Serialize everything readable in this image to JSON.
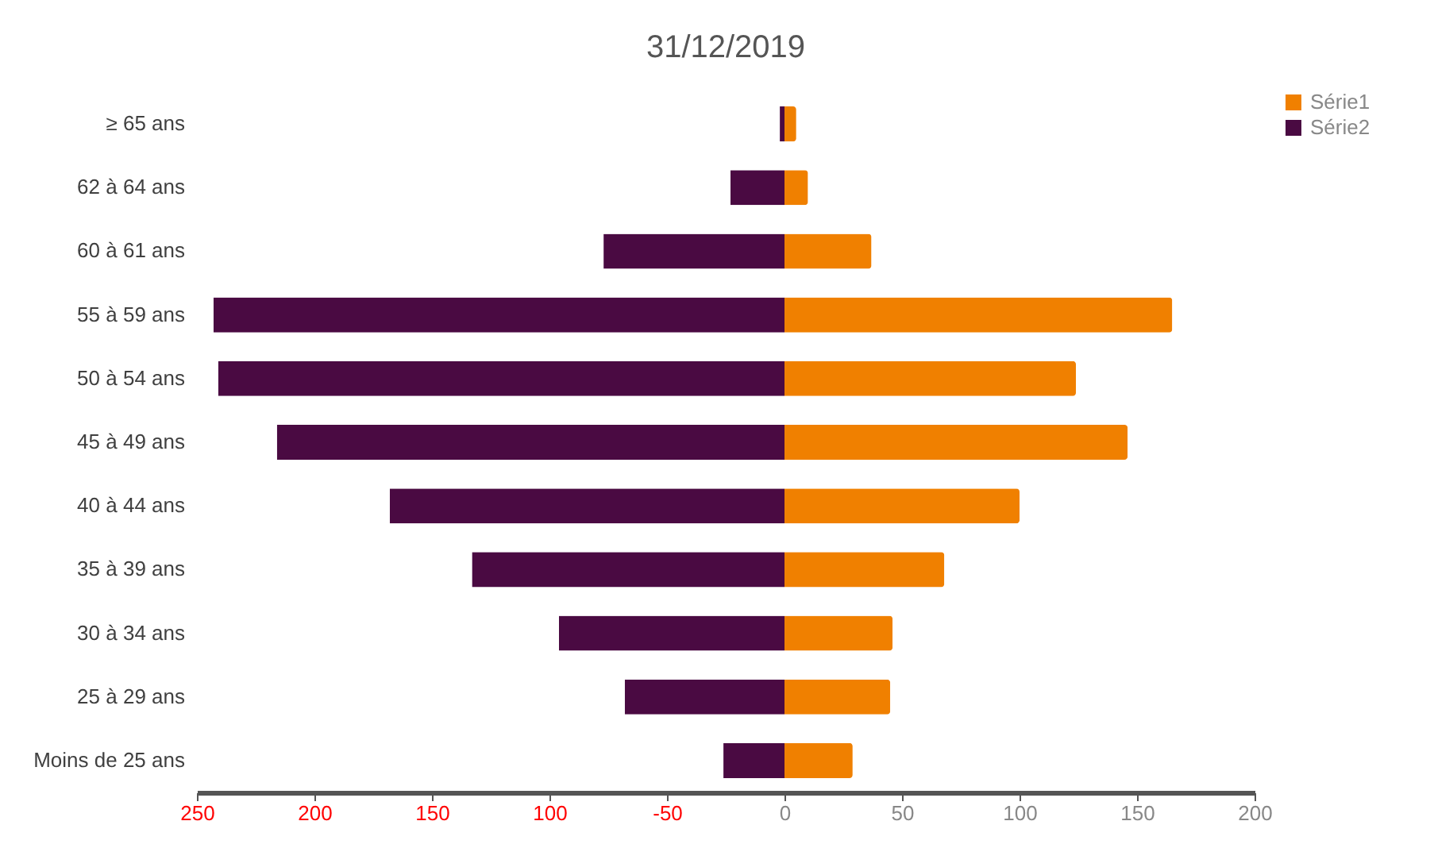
{
  "chart_data": {
    "type": "bar",
    "title": "31/12/2019",
    "orientation": "horizontal",
    "stacked": true,
    "categories": [
      "≥ 65 ans",
      "62 à 64 ans",
      "60 à 61 ans",
      "55 à 59 ans",
      "50 à 54 ans",
      "45 à 49 ans",
      "40 à 44 ans",
      "35 à 39 ans",
      "30 à 34 ans",
      "25 à 29 ans",
      "Moins de 25 ans"
    ],
    "series": [
      {
        "name": "Série1",
        "color": "#f08000",
        "values": [
          5,
          10,
          37,
          165,
          124,
          146,
          100,
          68,
          46,
          45,
          29
        ]
      },
      {
        "name": "Série2",
        "color": "#4a0a42",
        "values": [
          -2,
          -23,
          -77,
          -243,
          -241,
          -216,
          -168,
          -133,
          -96,
          -68,
          -26
        ]
      }
    ],
    "xlim": [
      -250,
      200
    ],
    "xticks": [
      {
        "value": -250,
        "label": "250"
      },
      {
        "value": -200,
        "label": "200"
      },
      {
        "value": -150,
        "label": "150"
      },
      {
        "value": -100,
        "label": "100"
      },
      -50,
      0,
      50,
      100,
      150,
      200
    ],
    "grid": false,
    "legend": "right"
  }
}
